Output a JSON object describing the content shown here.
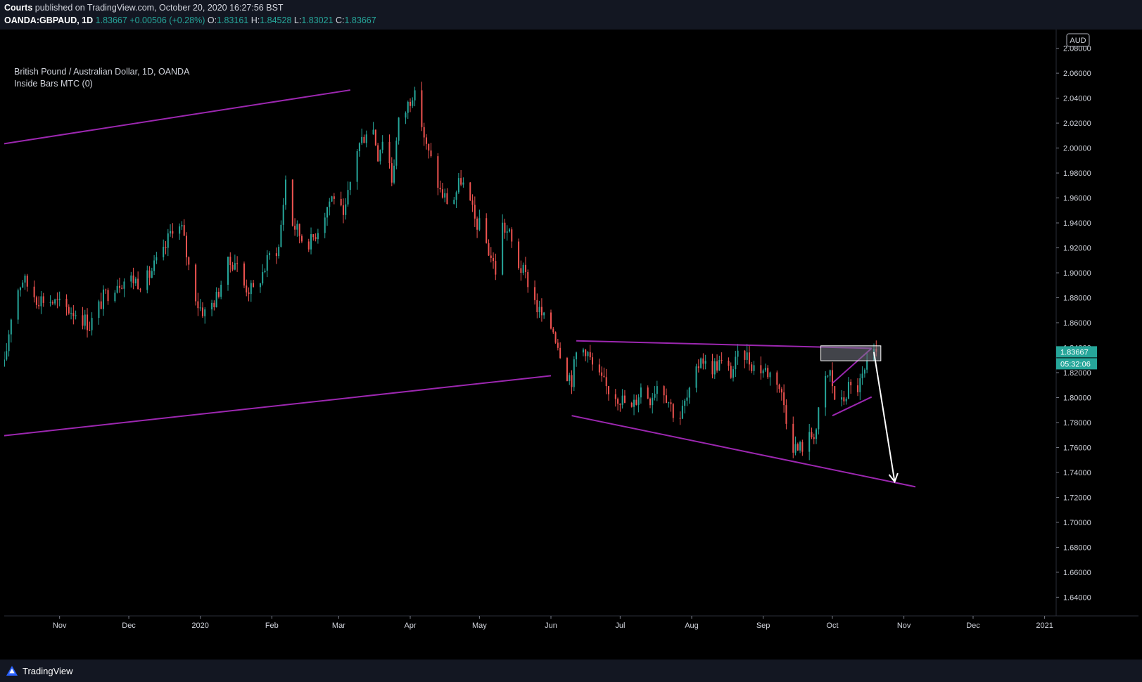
{
  "header": {
    "publisher": "Courts",
    "published_text": "published on TradingView.com, October 20, 2020 16:27:56 BST",
    "symbol": "OANDA:GBPAUD, 1D",
    "last": "1.83667",
    "change": "+0.00506 (+0.28%)",
    "o_label": "O:",
    "o_value": "1.83161",
    "h_label": "H:",
    "h_value": "1.84528",
    "l_label": "L:",
    "l_value": "1.83021",
    "c_label": "C:",
    "c_value": "1.83667"
  },
  "legend": {
    "title": "British Pound / Australian Dollar, 1D, OANDA",
    "indicator": "Inside Bars MTC (0)"
  },
  "footer": {
    "brand": "TradingView"
  },
  "colors": {
    "up": "#26a69a",
    "down": "#ef5350",
    "trendline": "#9c27b0",
    "arrow": "#ffffff",
    "price_label_bg": "#26a69a",
    "background": "#000000",
    "chrome": "#131722"
  },
  "chart_data": {
    "type": "candlestick",
    "symbol": "GBPAUD",
    "currency_label": "AUD",
    "last_price_label": "1.83667",
    "countdown_label": "05:32:06",
    "y_ticks": [
      "1.64000",
      "1.66000",
      "1.68000",
      "1.70000",
      "1.72000",
      "1.74000",
      "1.76000",
      "1.78000",
      "1.80000",
      "1.82000",
      "1.84000",
      "1.86000",
      "1.88000",
      "1.90000",
      "1.92000",
      "1.94000",
      "1.96000",
      "1.98000",
      "2.00000",
      "2.02000",
      "2.04000",
      "2.06000",
      "2.08000"
    ],
    "x_ticks": [
      {
        "date": "2019-11-01",
        "label": "Nov"
      },
      {
        "date": "2019-12-01",
        "label": "Dec"
      },
      {
        "date": "2020-01-01",
        "label": "2020"
      },
      {
        "date": "2020-02-01",
        "label": "Feb"
      },
      {
        "date": "2020-03-01",
        "label": "Mar"
      },
      {
        "date": "2020-04-01",
        "label": "Apr"
      },
      {
        "date": "2020-05-01",
        "label": "May"
      },
      {
        "date": "2020-06-01",
        "label": "Jun"
      },
      {
        "date": "2020-07-01",
        "label": "Jul"
      },
      {
        "date": "2020-08-01",
        "label": "Aug"
      },
      {
        "date": "2020-09-01",
        "label": "Sep"
      },
      {
        "date": "2020-10-01",
        "label": "Oct"
      },
      {
        "date": "2020-11-01",
        "label": "Nov"
      },
      {
        "date": "2020-12-01",
        "label": "Dec"
      },
      {
        "date": "2021-01-01",
        "label": "2021"
      }
    ],
    "ylim": [
      1.625,
      2.095
    ],
    "xlim": [
      "2019-10-08",
      "2021-01-06"
    ],
    "close_path": [
      [
        "2019-10-08",
        1.825
      ],
      [
        "2019-10-12",
        1.88
      ],
      [
        "2019-10-16",
        1.895
      ],
      [
        "2019-10-22",
        1.88
      ],
      [
        "2019-10-28",
        1.878
      ],
      [
        "2019-11-03",
        1.872
      ],
      [
        "2019-11-09",
        1.868
      ],
      [
        "2019-11-14",
        1.858
      ],
      [
        "2019-11-20",
        1.88
      ],
      [
        "2019-11-26",
        1.893
      ],
      [
        "2019-12-02",
        1.895
      ],
      [
        "2019-12-08",
        1.892
      ],
      [
        "2019-12-12",
        1.905
      ],
      [
        "2019-12-16",
        1.915
      ],
      [
        "2019-12-20",
        1.938
      ],
      [
        "2019-12-24",
        1.935
      ],
      [
        "2019-12-27",
        1.905
      ],
      [
        "2019-12-31",
        1.875
      ],
      [
        "2020-01-03",
        1.868
      ],
      [
        "2020-01-08",
        1.88
      ],
      [
        "2020-01-12",
        1.905
      ],
      [
        "2020-01-16",
        1.91
      ],
      [
        "2020-01-20",
        1.89
      ],
      [
        "2020-01-24",
        1.885
      ],
      [
        "2020-01-28",
        1.9
      ],
      [
        "2020-02-01",
        1.918
      ],
      [
        "2020-02-04",
        1.92
      ],
      [
        "2020-02-07",
        1.975
      ],
      [
        "2020-02-10",
        1.94
      ],
      [
        "2020-02-14",
        1.928
      ],
      [
        "2020-02-18",
        1.925
      ],
      [
        "2020-02-22",
        1.94
      ],
      [
        "2020-02-26",
        1.958
      ],
      [
        "2020-02-29",
        1.965
      ],
      [
        "2020-03-03",
        1.94
      ],
      [
        "2020-03-06",
        1.972
      ],
      [
        "2020-03-09",
        2.0
      ],
      [
        "2020-03-12",
        2.01
      ],
      [
        "2020-03-15",
        2.025
      ],
      [
        "2020-03-18",
        1.995
      ],
      [
        "2020-03-21",
        2.015
      ],
      [
        "2020-03-24",
        1.975
      ],
      [
        "2020-03-27",
        2.02
      ],
      [
        "2020-03-30",
        2.03
      ],
      [
        "2020-04-02",
        2.045
      ],
      [
        "2020-04-05",
        2.03
      ],
      [
        "2020-04-08",
        2.0
      ],
      [
        "2020-04-11",
        1.985
      ],
      [
        "2020-04-14",
        1.965
      ],
      [
        "2020-04-17",
        1.958
      ],
      [
        "2020-04-20",
        1.96
      ],
      [
        "2020-04-23",
        1.975
      ],
      [
        "2020-04-26",
        1.96
      ],
      [
        "2020-04-29",
        1.942
      ],
      [
        "2020-05-02",
        1.935
      ],
      [
        "2020-05-05",
        1.918
      ],
      [
        "2020-05-08",
        1.902
      ],
      [
        "2020-05-11",
        1.938
      ],
      [
        "2020-05-14",
        1.93
      ],
      [
        "2020-05-17",
        1.91
      ],
      [
        "2020-05-20",
        1.9
      ],
      [
        "2020-05-23",
        1.89
      ],
      [
        "2020-05-26",
        1.872
      ],
      [
        "2020-05-29",
        1.862
      ],
      [
        "2020-06-02",
        1.855
      ],
      [
        "2020-06-05",
        1.838
      ],
      [
        "2020-06-08",
        1.82
      ],
      [
        "2020-06-10",
        1.815
      ],
      [
        "2020-06-12",
        1.835
      ],
      [
        "2020-06-16",
        1.84
      ],
      [
        "2020-06-20",
        1.82
      ],
      [
        "2020-06-25",
        1.808
      ],
      [
        "2020-07-01",
        1.8
      ],
      [
        "2020-07-06",
        1.79
      ],
      [
        "2020-07-10",
        1.808
      ],
      [
        "2020-07-14",
        1.8
      ],
      [
        "2020-07-18",
        1.815
      ],
      [
        "2020-07-22",
        1.798
      ],
      [
        "2020-07-26",
        1.78
      ],
      [
        "2020-07-29",
        1.795
      ],
      [
        "2020-08-02",
        1.81
      ],
      [
        "2020-08-05",
        1.835
      ],
      [
        "2020-08-08",
        1.822
      ],
      [
        "2020-08-13",
        1.828
      ],
      [
        "2020-08-18",
        1.82
      ],
      [
        "2020-08-23",
        1.838
      ],
      [
        "2020-08-28",
        1.825
      ],
      [
        "2020-09-02",
        1.822
      ],
      [
        "2020-09-07",
        1.815
      ],
      [
        "2020-09-10",
        1.795
      ],
      [
        "2020-09-13",
        1.765
      ],
      [
        "2020-09-16",
        1.758
      ],
      [
        "2020-09-20",
        1.765
      ],
      [
        "2020-09-24",
        1.775
      ],
      [
        "2020-09-27",
        1.81
      ],
      [
        "2020-09-30",
        1.82
      ],
      [
        "2020-10-02",
        1.8
      ],
      [
        "2020-10-05",
        1.795
      ],
      [
        "2020-10-08",
        1.808
      ],
      [
        "2020-10-11",
        1.805
      ],
      [
        "2020-10-14",
        1.815
      ],
      [
        "2020-10-17",
        1.828
      ],
      [
        "2020-10-20",
        1.83667
      ]
    ],
    "annotations": [
      {
        "kind": "trendline",
        "x1": "2019-10-08",
        "y1": 2.0035,
        "x2": "2020-03-06",
        "y2": 2.0465
      },
      {
        "kind": "trendline",
        "x1": "2019-10-08",
        "y1": 1.7695,
        "x2": "2020-06-01",
        "y2": 1.8175
      },
      {
        "kind": "trendline",
        "x1": "2020-06-12",
        "y1": 1.8455,
        "x2": "2020-10-18",
        "y2": 1.8395
      },
      {
        "kind": "trendline",
        "x1": "2020-06-10",
        "y1": 1.7855,
        "x2": "2020-11-06",
        "y2": 1.7285
      },
      {
        "kind": "trendline",
        "x1": "2020-10-01",
        "y1": 1.8115,
        "x2": "2020-10-18",
        "y2": 1.8395
      },
      {
        "kind": "trendline",
        "x1": "2020-10-01",
        "y1": 1.7855,
        "x2": "2020-10-18",
        "y2": 1.8005
      },
      {
        "kind": "rectangle",
        "x1": "2020-09-26",
        "y1": 1.8415,
        "x2": "2020-10-22",
        "y2": 1.8295
      },
      {
        "kind": "arrow",
        "x1": "2020-10-19",
        "y1": 1.8365,
        "x2": "2020-10-28",
        "y2": 1.7325
      }
    ]
  }
}
